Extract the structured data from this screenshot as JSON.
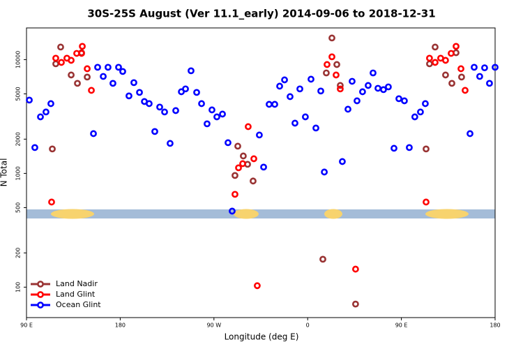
{
  "chart_data": {
    "type": "scatter",
    "title": "30S-25S August (Ver 11.1_early)   2014-09-06 to 2018-12-31",
    "xlabel": "Longitude (deg E)",
    "ylabel": "N Total",
    "xlim": [
      90,
      540
    ],
    "ylim": [
      54,
      19000
    ],
    "log_y": true,
    "legend": "lower left",
    "xticks": [
      {
        "value": 90,
        "label": "90 E"
      },
      180,
      {
        "value": 270,
        "label": "90 W"
      },
      {
        "value": 360,
        "label": "0"
      },
      {
        "value": 450,
        "label": "90 E"
      },
      {
        "value": 540,
        "label": "180"
      }
    ],
    "yticks": [
      100,
      200,
      500,
      1000,
      2000,
      5000,
      10000
    ],
    "series": [
      {
        "name": "Land Nadir",
        "color": "#993333",
        "x": [
          114.8,
          122.8,
          118.1,
          132.9,
          138.9,
          142.9,
          148.3,
          290.2,
          292.9,
          298.2,
          302.3,
          307.6,
          374.6,
          377.9,
          383.3,
          388,
          391.3,
          406,
          473.7,
          477,
          482.4,
          492.4,
          498.5,
          502.5,
          507.8
        ],
        "values": [
          1640,
          12900,
          9190,
          7330,
          6190,
          11500,
          7030,
          959,
          1735,
          1423,
          1202,
          857,
          176,
          7640,
          15500,
          9060,
          5930,
          71,
          1640,
          9190,
          12900,
          7330,
          6190,
          11500,
          7030
        ]
      },
      {
        "name": "Land Glint",
        "color": "#ff0000",
        "x": [
          114.1,
          118.1,
          123.5,
          128.8,
          132.9,
          138.2,
          142.9,
          143.6,
          148.3,
          152.3,
          290.2,
          293.6,
          297.6,
          302.9,
          308.3,
          311.6,
          378.6,
          383.3,
          387.3,
          391.3,
          406,
          473.7,
          477,
          482.4,
          487.7,
          492.4,
          497.8,
          502.5,
          507.2,
          511.2
        ],
        "values": [
          560,
          10300,
          9450,
          10300,
          9860,
          11350,
          11350,
          13090,
          8320,
          5370,
          655,
          1120,
          1218,
          2576,
          1345,
          103,
          9060,
          10590,
          7330,
          5530,
          144,
          560,
          10300,
          9450,
          10300,
          9860,
          11350,
          13090,
          8320,
          5370
        ]
      },
      {
        "name": "Ocean Glint",
        "color": "#0000ff",
        "x": [
          92.7,
          98,
          103.4,
          108.7,
          113.4,
          154.3,
          158.3,
          163.7,
          168.3,
          173,
          178.4,
          182.4,
          188.4,
          193.1,
          198.5,
          203.2,
          207.8,
          213.2,
          217.9,
          222.6,
          227.9,
          233.3,
          238.7,
          242.7,
          248,
          253.4,
          258.1,
          263.4,
          268.1,
          272.8,
          278.2,
          283.5,
          287.5,
          313.6,
          317.7,
          323,
          328.4,
          333.1,
          337.8,
          343.1,
          347.8,
          352.5,
          357.8,
          363.2,
          367.9,
          372.6,
          376,
          393.3,
          398.7,
          402.7,
          407.4,
          412.7,
          418.1,
          422.8,
          427.5,
          432.8,
          437.5,
          442.9,
          447.6,
          452.9,
          457.6,
          462.9,
          468.3,
          473,
          515.9,
          519.9,
          525.2,
          529.9,
          534.6,
          540
        ],
        "values": [
          4410,
          1687,
          3140,
          3467,
          4105,
          2236,
          8570,
          7120,
          8570,
          6190,
          8570,
          7870,
          4800,
          6280,
          5150,
          4285,
          4105,
          2335,
          3830,
          3467,
          1836,
          3566,
          5220,
          5530,
          7980,
          5150,
          4105,
          2727,
          3615,
          3140,
          3322,
          1862,
          466,
          2175,
          1136,
          4048,
          4048,
          5845,
          6640,
          4730,
          2765,
          5530,
          3140,
          6730,
          2505,
          5300,
          1028,
          1271,
          3666,
          6450,
          4345,
          5220,
          5930,
          7640,
          5600,
          5450,
          5760,
          1663,
          4535,
          4345,
          1687,
          3140,
          3467,
          4105,
          2236,
          8570,
          7120,
          8480,
          6190,
          8570
        ]
      }
    ]
  }
}
